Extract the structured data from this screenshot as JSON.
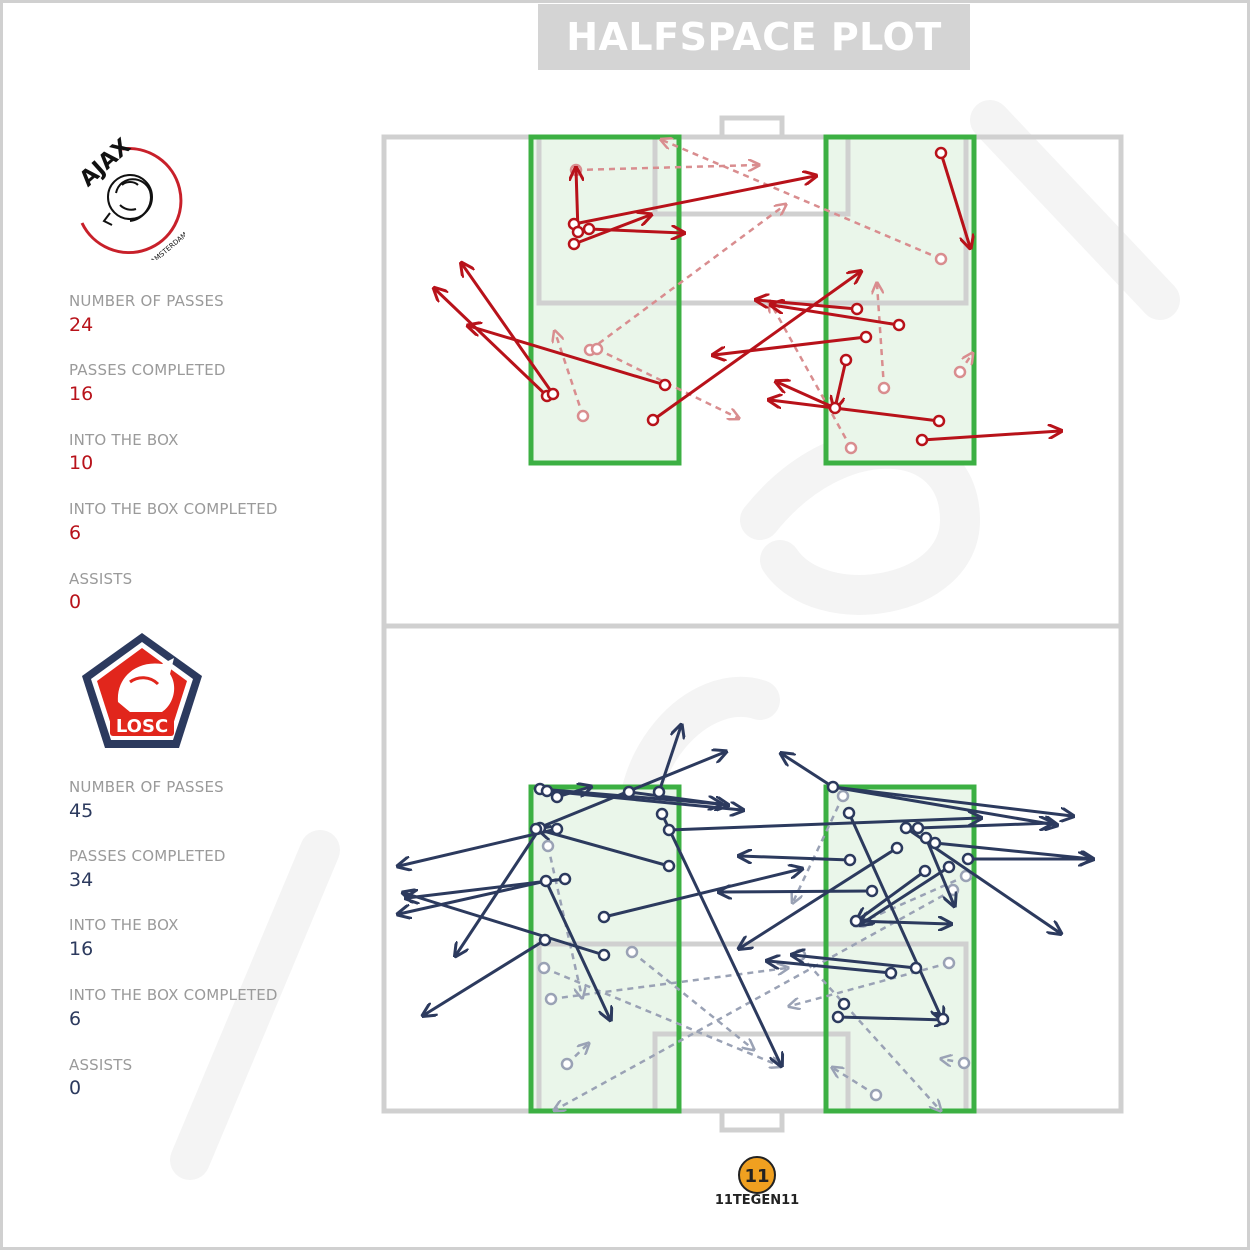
{
  "title": "HALFSPACE PLOT",
  "home": {
    "team": "Ajax",
    "logo_text": "AJAX",
    "logo_subtext": "AMSTERDAM",
    "color": "#b8121a",
    "stats": [
      {
        "label": "NUMBER OF PASSES",
        "value": "24"
      },
      {
        "label": "PASSES COMPLETED",
        "value": "16"
      },
      {
        "label": "INTO THE BOX",
        "value": "10"
      },
      {
        "label": "INTO THE BOX COMPLETED",
        "value": "6"
      },
      {
        "label": "ASSISTS",
        "value": "0"
      }
    ]
  },
  "away": {
    "team": "LOSC",
    "logo_text": "LOSC",
    "color": "#2c3a5e",
    "stats": [
      {
        "label": "NUMBER OF PASSES",
        "value": "45"
      },
      {
        "label": "PASSES COMPLETED",
        "value": "34"
      },
      {
        "label": "INTO THE BOX",
        "value": "16"
      },
      {
        "label": "INTO THE BOX COMPLETED",
        "value": "6"
      },
      {
        "label": "ASSISTS",
        "value": "0"
      }
    ]
  },
  "brand": {
    "mark": "11",
    "text": "11TEGEN11"
  },
  "colors": {
    "halfspace": "#3cb043",
    "halfspace_fill": "#eaf6ea",
    "pitch_lines": "#d0d0d0"
  }
}
